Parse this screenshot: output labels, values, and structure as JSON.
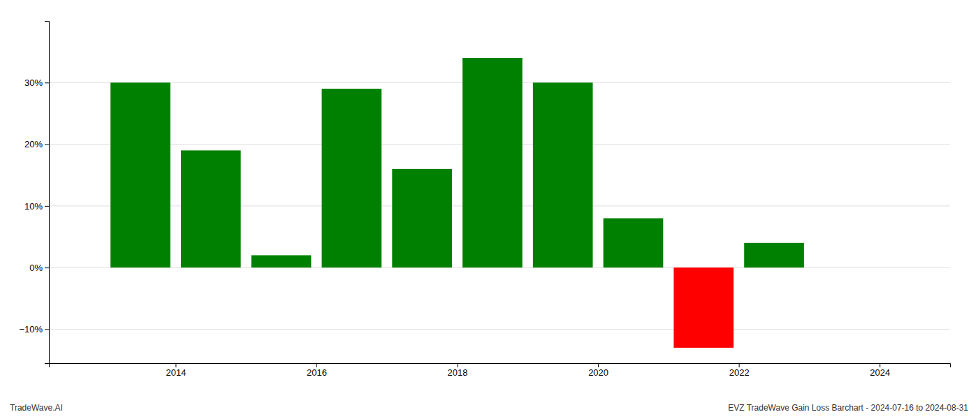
{
  "chart_data": {
    "type": "bar",
    "x": [
      2013.5,
      2014.5,
      2015.5,
      2016.5,
      2017.5,
      2018.5,
      2019.5,
      2020.5,
      2021.5,
      2022.5,
      2023.5
    ],
    "values": [
      0.3,
      0.19,
      0.02,
      0.29,
      0.16,
      0.34,
      0.3,
      0.08,
      -0.13,
      0.04,
      0.0
    ],
    "colors": [
      "#008000",
      "#008000",
      "#008000",
      "#008000",
      "#008000",
      "#008000",
      "#008000",
      "#008000",
      "#ff0000",
      "#008000",
      "#008000"
    ],
    "xlim": [
      2012.2,
      2025.0
    ],
    "xticks": [
      2014,
      2016,
      2018,
      2020,
      2022,
      2024
    ],
    "ylim": [
      -0.155,
      0.4
    ],
    "yticks": [
      {
        "value": -0.1,
        "label": "−10%"
      },
      {
        "value": 0.0,
        "label": "0%"
      },
      {
        "value": 0.1,
        "label": "10%"
      },
      {
        "value": 0.2,
        "label": "20%"
      },
      {
        "value": 0.3,
        "label": "30%"
      }
    ],
    "grid": true,
    "annotations": [
      "TradeWave.AI",
      "EVZ TradeWave Gain Loss Barchart - 2024-07-16 to 2024-08-31"
    ]
  }
}
